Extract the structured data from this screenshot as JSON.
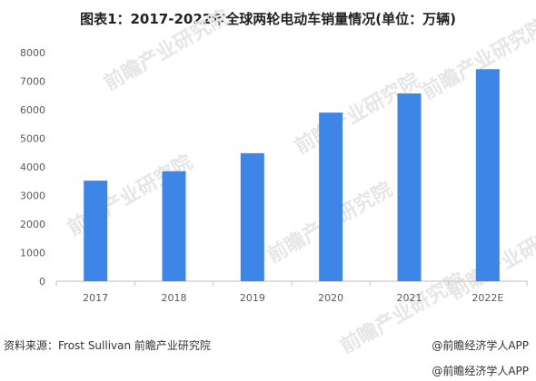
{
  "header": {
    "title": "图表1：2017-2022年全球两轮电动车销量情况(单位：万辆)"
  },
  "footer": {
    "source": "资料来源：Frost Sullivan 前瞻产业研究院",
    "brand_symbol": "@",
    "brand": "前瞻经济学人APP",
    "brand_repeat": "前瞻经济学人APP"
  },
  "watermark": {
    "text": "前瞻产业研究院"
  },
  "colors": {
    "bar": "#3d85e6",
    "gridline": "#d9d9d9",
    "axis": "#bfbfbf"
  },
  "chart_data": {
    "type": "bar",
    "title": "图表1：2017-2022年全球两轮电动车销量情况(单位：万辆)",
    "categories": [
      "2017",
      "2018",
      "2019",
      "2020",
      "2021",
      "2022E"
    ],
    "values": [
      3520,
      3850,
      4480,
      5900,
      6570,
      7420
    ],
    "ylim": [
      0,
      8000
    ],
    "yticks": [
      0,
      1000,
      2000,
      3000,
      4000,
      5000,
      6000,
      7000,
      8000
    ],
    "xlabel": "",
    "ylabel": "",
    "grid": false,
    "legend": "none"
  }
}
